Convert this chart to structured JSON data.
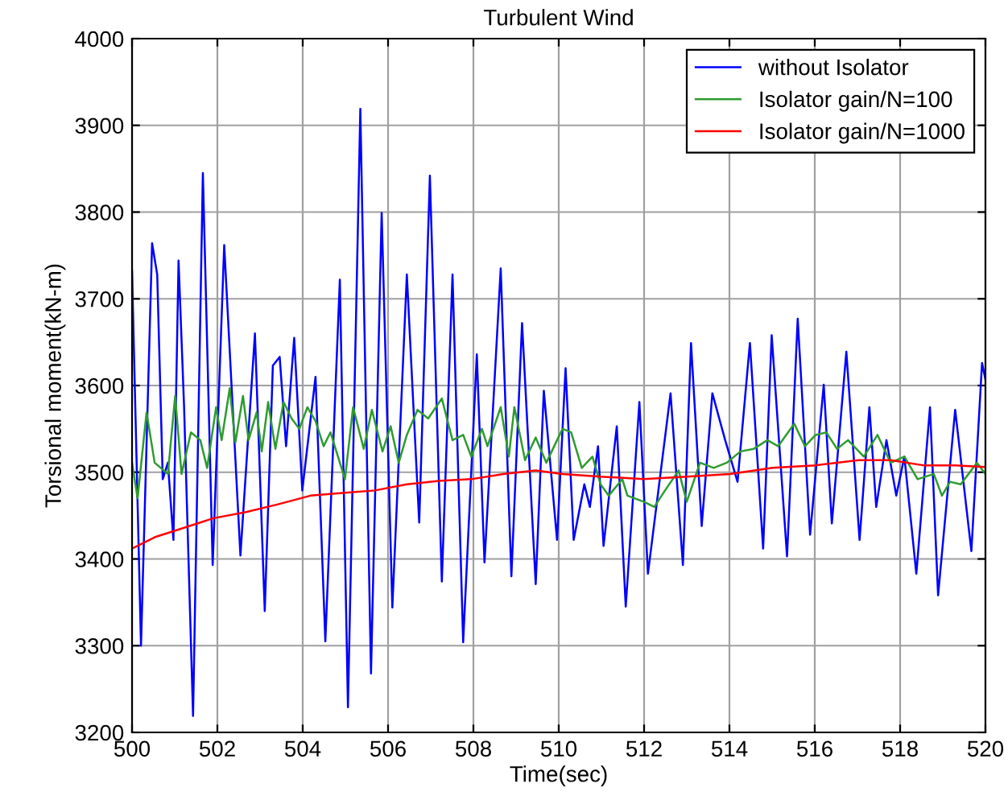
{
  "chart_data": {
    "type": "line",
    "title": "Turbulent Wind",
    "xlabel": "Time(sec)",
    "ylabel": "Torsional moment(kN-m)",
    "xlim": [
      500,
      520
    ],
    "xticks": [
      500,
      502,
      504,
      506,
      508,
      510,
      512,
      514,
      516,
      518,
      520
    ],
    "ylim": [
      3200,
      4000
    ],
    "yticks": [
      3200,
      3300,
      3400,
      3500,
      3600,
      3700,
      3800,
      3900,
      4000
    ],
    "grid": true,
    "legend": "top right",
    "series": [
      {
        "name": "without Isolator",
        "color": "#0000ff",
        "x": [
          500.0,
          500.21,
          500.47,
          500.59,
          500.72,
          500.84,
          500.97,
          501.09,
          501.22,
          501.43,
          501.66,
          501.89,
          502.16,
          502.54,
          502.88,
          503.11,
          503.3,
          503.46,
          503.61,
          503.8,
          503.99,
          504.3,
          504.53,
          504.87,
          505.06,
          505.35,
          505.6,
          505.85,
          506.1,
          506.44,
          506.73,
          506.98,
          507.26,
          507.51,
          507.76,
          508.08,
          508.26,
          508.64,
          508.89,
          509.14,
          509.46,
          509.65,
          509.96,
          510.16,
          510.35,
          510.6,
          510.73,
          510.92,
          511.05,
          511.36,
          511.57,
          511.89,
          512.09,
          512.62,
          512.91,
          513.1,
          513.35,
          513.6,
          513.9,
          514.19,
          514.48,
          514.79,
          514.99,
          515.35,
          515.6,
          515.89,
          516.21,
          516.4,
          516.74,
          517.05,
          517.28,
          517.44,
          517.68,
          517.91,
          518.1,
          518.38,
          518.7,
          518.89,
          519.29,
          519.67,
          519.92,
          520.0
        ],
        "values": [
          3732,
          3300,
          3764,
          3728,
          3492,
          3511,
          3422,
          3744,
          3575,
          3219,
          3845,
          3393,
          3762,
          3404,
          3660,
          3340,
          3623,
          3633,
          3530,
          3655,
          3479,
          3610,
          3305,
          3722,
          3229,
          3919,
          3268,
          3799,
          3344,
          3728,
          3442,
          3842,
          3374,
          3728,
          3304,
          3636,
          3396,
          3735,
          3380,
          3672,
          3371,
          3594,
          3422,
          3620,
          3422,
          3486,
          3460,
          3530,
          3415,
          3553,
          3345,
          3581,
          3383,
          3591,
          3393,
          3649,
          3438,
          3591,
          3537,
          3489,
          3649,
          3412,
          3658,
          3403,
          3677,
          3428,
          3601,
          3441,
          3639,
          3422,
          3575,
          3460,
          3537,
          3473,
          3518,
          3383,
          3575,
          3358,
          3572,
          3409,
          3626,
          3607
        ]
      },
      {
        "name": "Isolator gain/N=100",
        "color": "#2e9b2e",
        "x": [
          500.0,
          500.13,
          500.34,
          500.53,
          500.84,
          501.01,
          501.16,
          501.38,
          501.6,
          501.76,
          501.97,
          502.1,
          502.29,
          502.42,
          502.6,
          502.73,
          502.92,
          503.04,
          503.19,
          503.36,
          503.55,
          503.74,
          503.92,
          504.11,
          504.3,
          504.49,
          504.65,
          504.99,
          505.18,
          505.43,
          505.62,
          505.87,
          506.06,
          506.25,
          506.44,
          506.69,
          506.94,
          507.26,
          507.51,
          507.76,
          507.95,
          508.2,
          508.33,
          508.64,
          508.83,
          508.96,
          509.21,
          509.46,
          509.71,
          509.96,
          510.09,
          510.29,
          510.54,
          510.79,
          510.98,
          511.17,
          511.49,
          511.61,
          511.99,
          512.24,
          512.49,
          512.81,
          513.0,
          513.31,
          513.63,
          513.94,
          514.26,
          514.57,
          514.89,
          515.14,
          515.52,
          515.77,
          516.02,
          516.27,
          516.52,
          516.78,
          517.15,
          517.47,
          517.78,
          518.1,
          518.41,
          518.79,
          518.98,
          519.17,
          519.42,
          519.8,
          520.0
        ],
        "values": [
          3511,
          3470,
          3569,
          3511,
          3498,
          3588,
          3498,
          3546,
          3537,
          3505,
          3575,
          3537,
          3597,
          3534,
          3588,
          3537,
          3569,
          3524,
          3581,
          3527,
          3581,
          3562,
          3550,
          3575,
          3559,
          3530,
          3546,
          3492,
          3575,
          3527,
          3572,
          3524,
          3553,
          3511,
          3543,
          3572,
          3562,
          3585,
          3537,
          3543,
          3518,
          3550,
          3530,
          3575,
          3518,
          3575,
          3514,
          3540,
          3511,
          3537,
          3550,
          3546,
          3505,
          3518,
          3486,
          3473,
          3492,
          3473,
          3466,
          3460,
          3479,
          3502,
          3466,
          3511,
          3505,
          3511,
          3524,
          3527,
          3537,
          3530,
          3556,
          3530,
          3543,
          3546,
          3527,
          3537,
          3518,
          3543,
          3511,
          3518,
          3492,
          3498,
          3473,
          3489,
          3486,
          3511,
          3498
        ]
      },
      {
        "name": "Isolator gain/N=1000",
        "color": "#ff0000",
        "x": [
          500.0,
          500.53,
          501.16,
          501.91,
          502.67,
          503.42,
          504.18,
          504.93,
          505.69,
          506.44,
          507.19,
          507.95,
          508.7,
          509.46,
          510.09,
          510.98,
          511.99,
          513.0,
          514.01,
          515.01,
          516.02,
          517.03,
          517.78,
          518.54,
          519.29,
          520.0
        ],
        "values": [
          3412,
          3425,
          3435,
          3447,
          3454,
          3463,
          3473,
          3476,
          3479,
          3486,
          3490,
          3492,
          3498,
          3502,
          3498,
          3495,
          3492,
          3495,
          3498,
          3505,
          3508,
          3514,
          3514,
          3508,
          3508,
          3506
        ]
      }
    ]
  }
}
